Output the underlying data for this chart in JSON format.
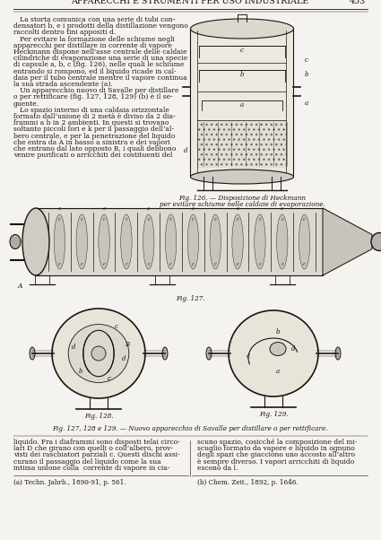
{
  "page_title": "APPARECCHI E STRUMENTI PER USO INDUSTRIALE",
  "page_number": "453",
  "background_color": "#f5f3ef",
  "text_color": "#1a1510",
  "title_fontsize": 6.8,
  "body_fontsize": 5.5,
  "caption_fontsize": 5.2,
  "left_col_text": [
    "   La storta comunica con una serie di tubi con-",
    "densatori b, e i prodotti della distillazione vengono",
    "raccolti dentro tini appositi d.",
    "   Per evitare la formazione delle schiume negli",
    "apparecchi per distillare in corrente di vapore",
    "Heckmann dispone nell'asse centrale delle caldaie",
    "cilindriche di evaporazione una serie di una specie",
    "di capsule a, b, c (fig. 126), nelle quali le schiume",
    "entrando si rompono, ed il liquido ricade in cal-",
    "daia per il tubo centrale mentre il vapore continua",
    "la sua strada ascendente (a).",
    "   Un apparecchio nuovo di Savalle per distillare",
    "o per rettificare (fig. 127, 128, 129) (b) è il se-",
    "guente.",
    "   Lo spazio interno di una caldaia orizzontale",
    "formato dall’unione di 2 metà è diviso da 2 dia-",
    "frammi a b in 2 ambienti. In questi si trovano",
    "soltanto piccoli fori e k per il passaggio dell’al-",
    "bero centrale, e per la penetrazione del liquido",
    "che entra da A in basso a sinistra e dei vapori",
    "che entrano dal lato opposto B, i quali debbono",
    "venire purificati o arricchiti dei costituenti del"
  ],
  "right_col_upper_caption": [
    "Fig. 126. — Disposizione di Heckmann",
    "per evitare schiume nelle caldaie di evaporazione."
  ],
  "fig127_label": "Fig. 127.",
  "fig_group_caption": "Fig. 127, 128 e 129. — Nuovo apparecchio di Savalle per distillare o per rettificare.",
  "left_col_bottom_text": [
    "liquido. Fra i diaframmi sono disposti telai circo-",
    "lari D che girano con quelli o coll’albero, prov-",
    "visti dei raschiatori parziali c. Questi dischi assi-",
    "curano il passaggio del liquido come la sua",
    "intima unione colla  corrente di vapore in cia-"
  ],
  "right_col_bottom_text": [
    "scuno spazio, cosicché la composizione del mi-",
    "scuglio formato da vapore e liquido in ognuno",
    "degli spazi che giacciono uno accosto all’altro",
    "è sempre diverso. I vapori arricchiti di liquido",
    "escono da l."
  ],
  "footnote_left": "(a) Techn. Jahrb., 1890-91, p. 561.",
  "footnote_right": "(b) Chem. Zeit., 1892, p. 1646.",
  "fig128_label": "Fig. 128.",
  "fig129_label": "Fig. 129."
}
